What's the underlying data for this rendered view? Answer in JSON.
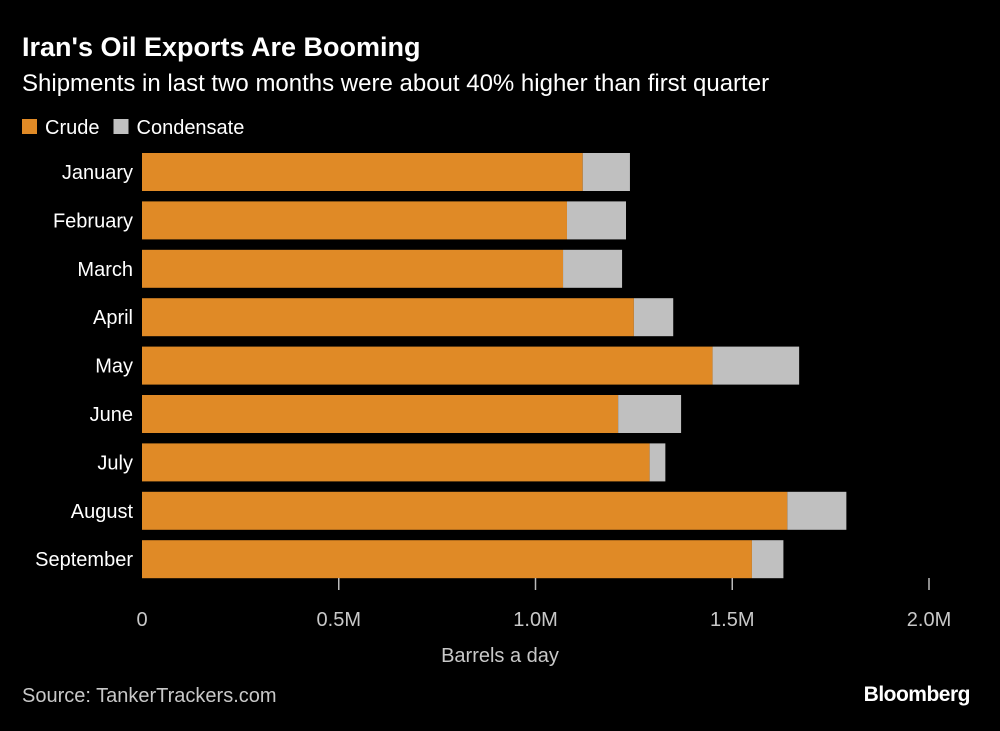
{
  "chart_data": {
    "type": "bar",
    "orientation": "horizontal",
    "stacked": true,
    "title": "Iran's Oil Exports Are Booming",
    "subtitle": "Shipments in last two months were about 40% higher than first quarter",
    "categories": [
      "January",
      "February",
      "March",
      "April",
      "May",
      "June",
      "July",
      "August",
      "September"
    ],
    "series": [
      {
        "name": "Crude",
        "color": "#e08a26",
        "values": [
          1.12,
          1.08,
          1.07,
          1.25,
          1.45,
          1.21,
          1.29,
          1.64,
          1.55
        ]
      },
      {
        "name": "Condensate",
        "color": "#c0c0c0",
        "values": [
          0.12,
          0.15,
          0.15,
          0.1,
          0.22,
          0.16,
          0.04,
          0.15,
          0.08
        ]
      }
    ],
    "xlabel": "Barrels a day",
    "ylabel": "",
    "xlim": [
      0,
      2.0
    ],
    "xticks": [
      0,
      0.5,
      1.0,
      1.5,
      2.0
    ],
    "xtick_labels": [
      "0",
      "0.5M",
      "1.0M",
      "1.5M",
      "2.0M"
    ],
    "legend_position": "top-left",
    "grid": false
  },
  "footer": {
    "source": "Source: TankerTrackers.com",
    "brand": "Bloomberg"
  }
}
